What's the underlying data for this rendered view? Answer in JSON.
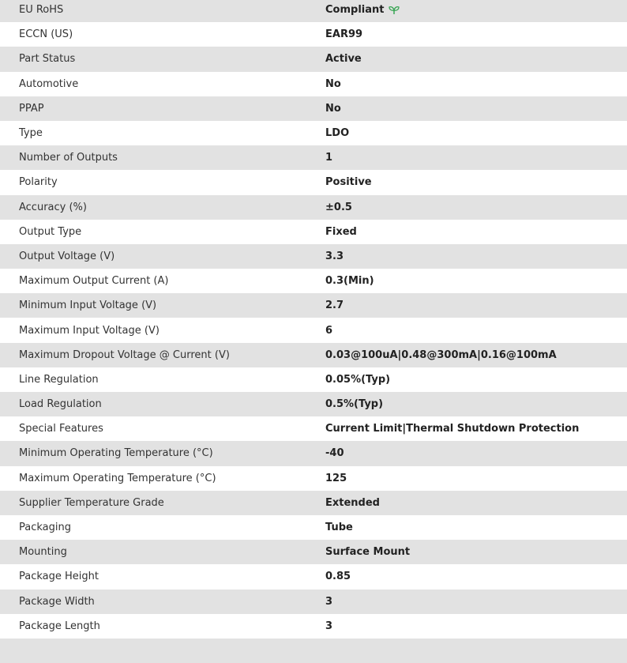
{
  "accent_color": "#3aa655",
  "rows": [
    {
      "label": "EU RoHS",
      "value": "Compliant",
      "icon": "leaf-icon"
    },
    {
      "label": "ECCN (US)",
      "value": "EAR99"
    },
    {
      "label": "Part Status",
      "value": "Active"
    },
    {
      "label": "Automotive",
      "value": "No"
    },
    {
      "label": "PPAP",
      "value": "No"
    },
    {
      "label": "Type",
      "value": "LDO"
    },
    {
      "label": "Number of Outputs",
      "value": "1"
    },
    {
      "label": "Polarity",
      "value": "Positive"
    },
    {
      "label": "Accuracy (%)",
      "value": "±0.5"
    },
    {
      "label": "Output Type",
      "value": "Fixed"
    },
    {
      "label": "Output Voltage (V)",
      "value": "3.3"
    },
    {
      "label": "Maximum Output Current (A)",
      "value": "0.3(Min)"
    },
    {
      "label": "Minimum Input Voltage (V)",
      "value": "2.7"
    },
    {
      "label": "Maximum Input Voltage (V)",
      "value": "6"
    },
    {
      "label": "Maximum Dropout Voltage @ Current (V)",
      "value": "0.03@100uA|0.48@300mA|0.16@100mA"
    },
    {
      "label": "Line Regulation",
      "value": "0.05%(Typ)"
    },
    {
      "label": "Load Regulation",
      "value": "0.5%(Typ)"
    },
    {
      "label": "Special Features",
      "value": "Current Limit|Thermal Shutdown Protection"
    },
    {
      "label": "Minimum Operating Temperature (°C)",
      "value": "-40"
    },
    {
      "label": "Maximum Operating Temperature (°C)",
      "value": "125"
    },
    {
      "label": "Supplier Temperature Grade",
      "value": "Extended"
    },
    {
      "label": "Packaging",
      "value": "Tube"
    },
    {
      "label": "Mounting",
      "value": "Surface Mount"
    },
    {
      "label": "Package Height",
      "value": "0.85"
    },
    {
      "label": "Package Width",
      "value": "3"
    },
    {
      "label": "Package Length",
      "value": "3"
    },
    {
      "label": "",
      "value": ""
    }
  ]
}
